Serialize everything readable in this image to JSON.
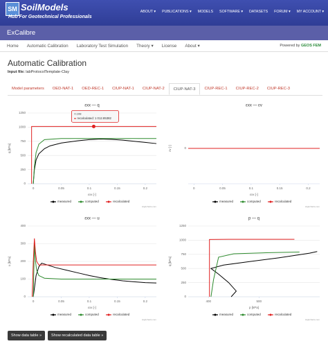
{
  "header": {
    "logo": "SM",
    "brand": "SoilModels",
    "tagline": "Hub For Geotechnical Professionals",
    "menu": [
      "ABOUT ▾",
      "PUBLICATIONS ▾",
      "MODELS",
      "SOFTWARE ▾",
      "DATASETS",
      "FORUM ▾",
      "MY ACCOUNT ▾"
    ]
  },
  "app_title": "ExCalibre",
  "nav": [
    "Home",
    "Automatic Calibration",
    "Laboratory Test Simulation",
    "Theory ▾",
    "License",
    "About ▾"
  ],
  "powered_by": {
    "text": "Powered by",
    "name": "GEOS FEM"
  },
  "heading": "Automatic Calibration",
  "input_file": {
    "label": "Input file:",
    "value": "labProtocolTemplate-Clay"
  },
  "tabs": [
    "Model parameters",
    "OED-NAT-1",
    "OED-REC-1",
    "CIUP-NAT-1",
    "CIUP-NAT-2",
    "CIUP-NAT-3",
    "CIUP-REC-1",
    "CIUP-REC-2",
    "CIUP-REC-3"
  ],
  "active_tab": "CIUP-NAT-3",
  "chart_data": [
    {
      "type": "line",
      "title": "εxx — q",
      "x_label": "εxx [-]",
      "y_label": "q [kPa]",
      "xlim": [
        -0.01,
        0.22
      ],
      "ylim": [
        0,
        1250
      ],
      "xticks": [
        0,
        0.05,
        0.1,
        0.15,
        0.2
      ],
      "yticks": [
        0,
        250,
        500,
        750,
        1000,
        1250
      ],
      "grid": true,
      "credit": "Highcharts.com",
      "tooltip": {
        "x": 0.108,
        "y": 1012.85382,
        "header": "0.108",
        "label": "recalculated: 1 012.85382"
      },
      "series": [
        {
          "name": "measured",
          "color": "#000000",
          "x": [
            0,
            0.002,
            0.005,
            0.01,
            0.02,
            0.03,
            0.05,
            0.08,
            0.1,
            0.12,
            0.14,
            0.16,
            0.18,
            0.2,
            0.22
          ],
          "values": [
            0,
            250,
            420,
            530,
            620,
            670,
            720,
            760,
            780,
            790,
            785,
            770,
            750,
            730,
            710
          ]
        },
        {
          "name": "computed",
          "color": "#2e8b2e",
          "x": [
            0,
            0.002,
            0.005,
            0.01,
            0.02,
            0.05,
            0.1,
            0.15,
            0.2,
            0.22
          ],
          "values": [
            0,
            300,
            550,
            700,
            780,
            800,
            800,
            800,
            800,
            800
          ]
        },
        {
          "name": "recalculated",
          "color": "#e02020",
          "x": [
            -0.003,
            -0.003,
            0.108,
            0.22
          ],
          "values": [
            0,
            1012.85382,
            1012.85382,
            1012.85382
          ]
        }
      ]
    },
    {
      "type": "line",
      "title": "εxx — εv",
      "x_label": "εxx [-]",
      "y_label": "εv [-]",
      "xlim": [
        -0.01,
        0.22
      ],
      "ylim": [
        -1,
        1
      ],
      "xticks": [
        0,
        0.05,
        0.1,
        0.15,
        0.2
      ],
      "yticks": [
        0
      ],
      "grid": true,
      "credit": "Highcharts.com",
      "series": [
        {
          "name": "measured",
          "color": "#000000",
          "x": [
            0,
            0.22
          ],
          "values": [
            0,
            0
          ]
        },
        {
          "name": "computed",
          "color": "#2e8b2e",
          "x": [
            0,
            0.22
          ],
          "values": [
            0,
            0
          ]
        },
        {
          "name": "recalculated",
          "color": "#e02020",
          "x": [
            -0.01,
            0.22
          ],
          "values": [
            0,
            0
          ]
        }
      ]
    },
    {
      "type": "line",
      "title": "εxx — u",
      "x_label": "εxx [-]",
      "y_label": "u [kPa]",
      "xlim": [
        -0.01,
        0.22
      ],
      "ylim": [
        0,
        400
      ],
      "xticks": [
        0,
        0.05,
        0.1,
        0.15,
        0.2
      ],
      "yticks": [
        0,
        100,
        200,
        300,
        400
      ],
      "grid": true,
      "credit": "Highcharts.com",
      "series": [
        {
          "name": "measured",
          "color": "#000000",
          "x": [
            0,
            0.005,
            0.01,
            0.015,
            0.02,
            0.04,
            0.06,
            0.08,
            0.1,
            0.12,
            0.14,
            0.16,
            0.18,
            0.2,
            0.22
          ],
          "values": [
            0,
            120,
            170,
            190,
            185,
            165,
            150,
            135,
            120,
            108,
            98,
            90,
            85,
            80,
            78
          ]
        },
        {
          "name": "computed",
          "color": "#2e8b2e",
          "x": [
            0,
            0.002,
            0.004,
            0.006,
            0.01,
            0.02,
            0.05,
            0.1,
            0.22
          ],
          "values": [
            0,
            300,
            200,
            150,
            120,
            105,
            100,
            100,
            100
          ]
        },
        {
          "name": "recalculated",
          "color": "#e02020",
          "x": [
            -0.002,
            0,
            0.002,
            0.004,
            0.006,
            0.01,
            0.05,
            0.22
          ],
          "values": [
            0,
            200,
            330,
            250,
            200,
            180,
            180,
            180
          ]
        }
      ]
    },
    {
      "type": "line",
      "title": "p — q",
      "x_label": "p [kPa]",
      "y_label": "q [kPa]",
      "xlim": [
        360,
        620
      ],
      "ylim": [
        0,
        1250
      ],
      "xticks": [
        400,
        500
      ],
      "yticks": [
        0,
        250,
        500,
        750,
        1000,
        1250
      ],
      "grid": true,
      "credit": "Highcharts.com",
      "series": [
        {
          "name": "measured",
          "color": "#000000",
          "x": [
            445,
            455,
            440,
            420,
            405,
            430,
            480,
            540,
            600,
            615
          ],
          "values": [
            0,
            100,
            250,
            400,
            500,
            560,
            620,
            690,
            770,
            800
          ]
        },
        {
          "name": "computed",
          "color": "#2e8b2e",
          "x": [
            405,
            410,
            420,
            450,
            520,
            580
          ],
          "values": [
            0,
            300,
            700,
            760,
            780,
            790
          ]
        },
        {
          "name": "recalculated",
          "color": "#e02020",
          "x": [
            402,
            402,
            440,
            570
          ],
          "values": [
            0,
            1012,
            1015,
            1015
          ]
        }
      ]
    }
  ],
  "buttons": [
    "Show data table »",
    "Show recalculated data table »"
  ]
}
